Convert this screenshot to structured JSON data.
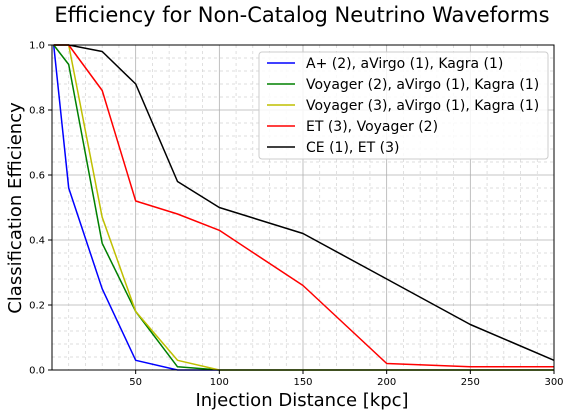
{
  "chart_data": {
    "type": "line",
    "title": "Efficiency for Non-Catalog Neutrino Waveforms",
    "xlabel": "Injection Distance [kpc]",
    "ylabel": "Classification Efficiency",
    "xlim": [
      0,
      300
    ],
    "ylim": [
      0,
      1.0
    ],
    "xticks": [
      50,
      100,
      150,
      200,
      250,
      300
    ],
    "yticks": [
      0.0,
      0.2,
      0.4,
      0.6,
      0.8,
      1.0
    ],
    "grid": true,
    "minor_grid": true,
    "legend_position": "top-right",
    "series": [
      {
        "name": "A+ (2), aVirgo (1), Kagra (1)",
        "color": "#0000ff",
        "x": [
          1,
          10,
          30,
          50,
          75,
          100,
          150,
          200,
          250,
          300
        ],
        "y": [
          1.0,
          0.56,
          0.25,
          0.03,
          0.0,
          0.0,
          0.0,
          0.0,
          0.0,
          0.0
        ]
      },
      {
        "name": "Voyager (2), aVirgo (1), Kagra (1)",
        "color": "#008000",
        "x": [
          1,
          10,
          30,
          50,
          75,
          100,
          150,
          200,
          250,
          300
        ],
        "y": [
          1.0,
          0.94,
          0.39,
          0.18,
          0.01,
          0.0,
          0.0,
          0.0,
          0.0,
          0.0
        ]
      },
      {
        "name": "Voyager (3), aVirgo (1), Kagra (1)",
        "color": "#bfbf00",
        "x": [
          1,
          10,
          30,
          50,
          75,
          100,
          150,
          200,
          250,
          300
        ],
        "y": [
          1.0,
          1.0,
          0.47,
          0.18,
          0.03,
          0.0,
          0.0,
          0.0,
          0.0,
          0.0
        ]
      },
      {
        "name": "ET (3), Voyager (2)",
        "color": "#ff0000",
        "x": [
          1,
          10,
          30,
          50,
          75,
          100,
          150,
          200,
          250,
          300
        ],
        "y": [
          1.0,
          1.0,
          0.86,
          0.52,
          0.48,
          0.43,
          0.26,
          0.02,
          0.01,
          0.01
        ]
      },
      {
        "name": "CE (1), ET (3)",
        "color": "#000000",
        "x": [
          1,
          10,
          30,
          50,
          75,
          100,
          150,
          200,
          250,
          300
        ],
        "y": [
          1.0,
          1.0,
          0.98,
          0.88,
          0.58,
          0.5,
          0.42,
          0.28,
          0.14,
          0.03
        ]
      }
    ]
  }
}
